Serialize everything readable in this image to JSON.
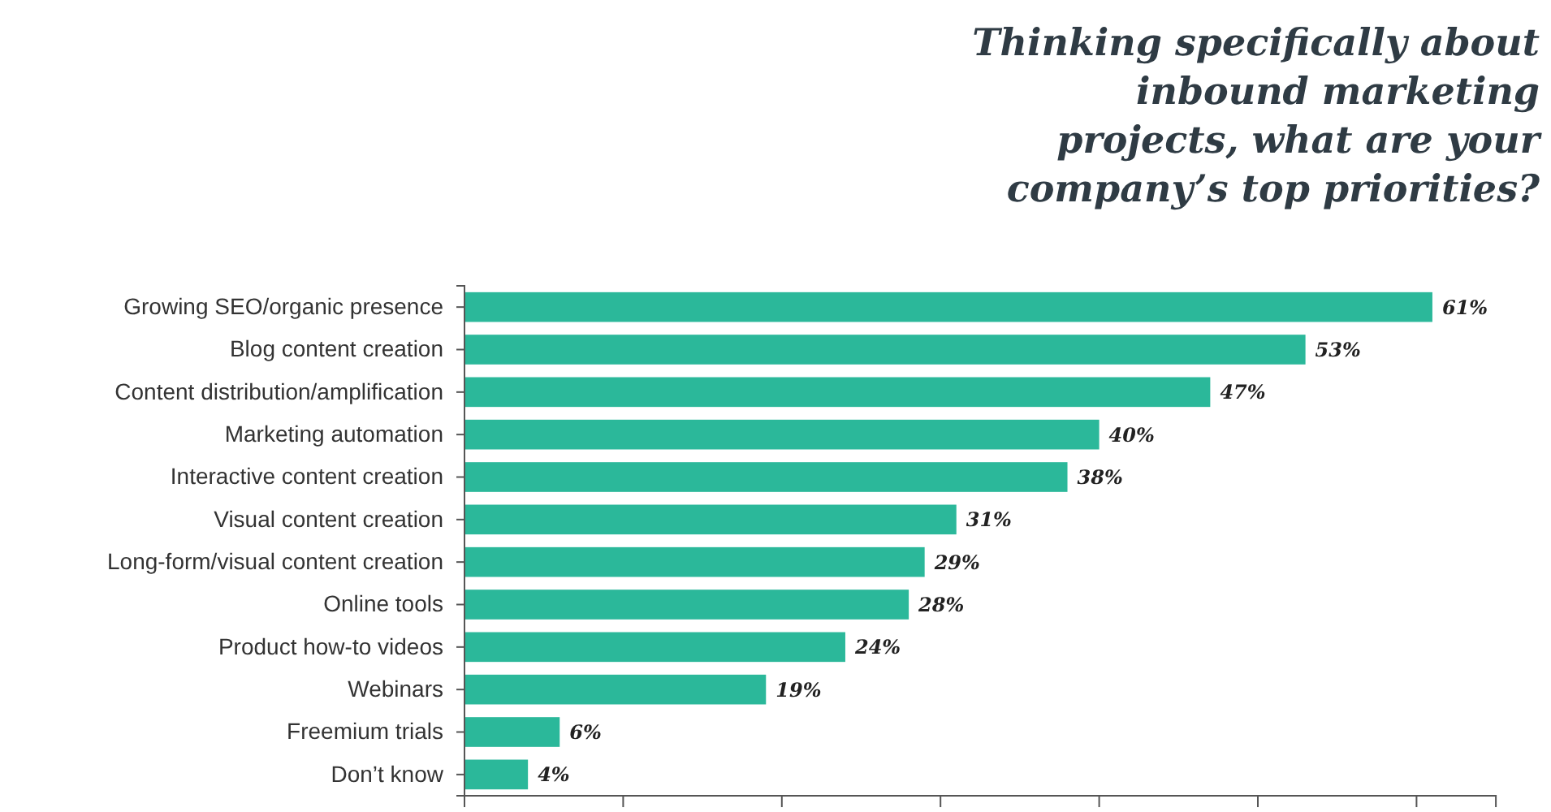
{
  "chart_data": {
    "type": "bar",
    "orientation": "horizontal",
    "title": "Thinking specifically about inbound marketing projects, what are your company’s top priorities?",
    "categories": [
      "Growing SEO/organic presence",
      "Blog content creation",
      "Content distribution/amplification",
      "Marketing automation",
      "Interactive content creation",
      "Visual content creation",
      "Long-form/visual content creation",
      "Online tools",
      "Product how-to videos",
      "Webinars",
      "Freemium trials",
      "Don’t know"
    ],
    "values": [
      61,
      53,
      47,
      40,
      38,
      31,
      29,
      28,
      24,
      19,
      6,
      4
    ],
    "value_labels": [
      "61%",
      "53%",
      "47%",
      "40%",
      "38%",
      "31%",
      "29%",
      "28%",
      "24%",
      "19%",
      "6%",
      "4%"
    ],
    "color": "#2bb89a",
    "xlim": [
      0,
      65
    ],
    "xticks": [
      {
        "value": 0,
        "label": null
      },
      {
        "value": 10,
        "label": null
      },
      {
        "value": 20,
        "label": null
      },
      {
        "value": 30,
        "label": null
      },
      {
        "value": 40,
        "label": null
      },
      {
        "value": 50,
        "label": null
      },
      {
        "value": 60,
        "label": null
      }
    ],
    "tick_labels": "y"
  }
}
